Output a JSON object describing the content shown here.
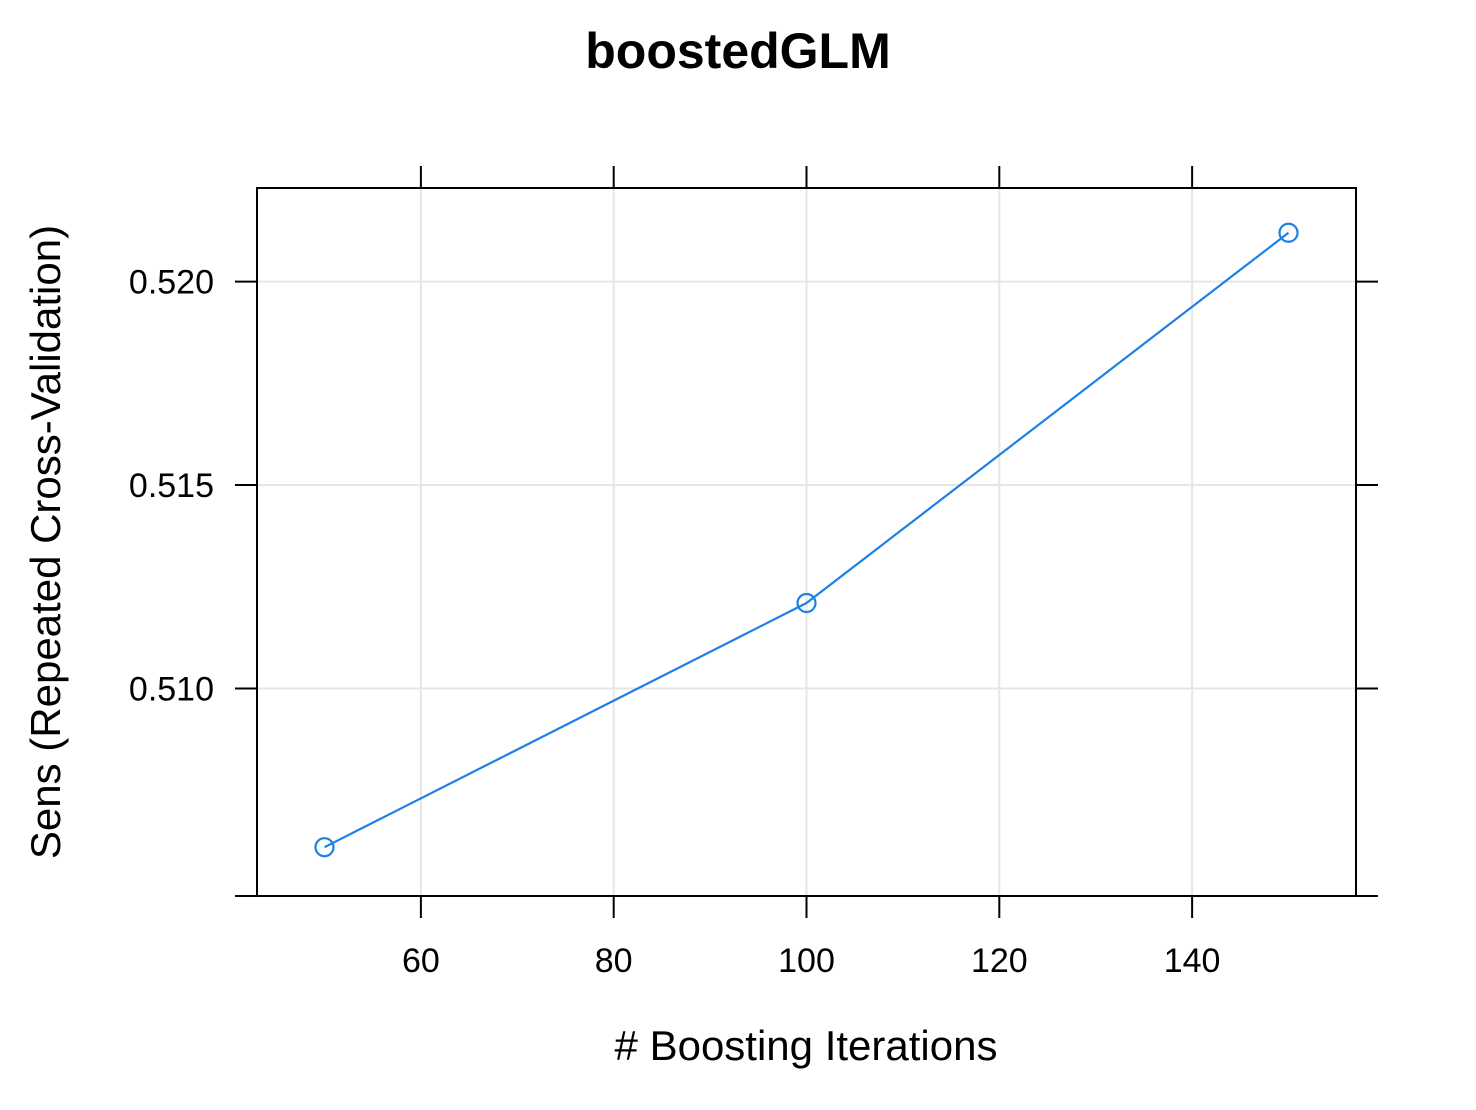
{
  "chart_data": {
    "type": "line",
    "title": "boostedGLM",
    "xlabel": "# Boosting Iterations",
    "ylabel": "Sens (Repeated Cross-Validation)",
    "x": [
      50,
      100,
      150
    ],
    "series": [
      {
        "values": [
          0.5061,
          0.5121,
          0.5212
        ],
        "color": "#1e7fe6"
      }
    ],
    "xticks": [
      60,
      80,
      100,
      120,
      140
    ],
    "xtick_labels": [
      "60",
      "80",
      "100",
      "120",
      "140"
    ],
    "yticks": [
      0.51,
      0.515,
      0.52
    ],
    "ytick_labels": [
      "0.510",
      "0.515",
      "0.520"
    ],
    "xlim": [
      43,
      157
    ],
    "ylim": [
      0.5049,
      0.5223
    ],
    "grid": true,
    "marker": "open-circle"
  }
}
